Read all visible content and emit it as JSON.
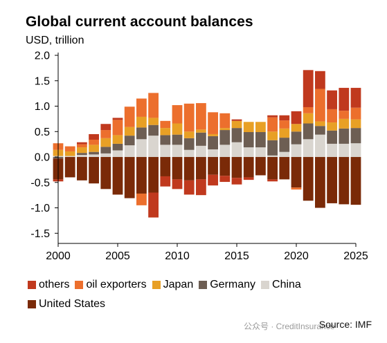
{
  "title": "Global current account balances",
  "subtitle": "USD, trillion",
  "source": "Source: IMF",
  "watermark": "公众号 · CreditInsurance",
  "chart_data": {
    "type": "bar",
    "stacked": true,
    "x": [
      2000,
      2001,
      2002,
      2003,
      2004,
      2005,
      2006,
      2007,
      2008,
      2009,
      2010,
      2011,
      2012,
      2013,
      2014,
      2015,
      2016,
      2017,
      2018,
      2019,
      2020,
      2021,
      2022,
      2023,
      2024,
      2025
    ],
    "xticks": [
      "2000",
      "2005",
      "2010",
      "2015",
      "2020",
      "2025"
    ],
    "yticks": [
      "2.0",
      "1.5",
      "1.0",
      "0.5",
      "0.0",
      "-0.5",
      "-1.0",
      "-1.5"
    ],
    "ylim": [
      -1.7,
      2.0
    ],
    "xlim": [
      2000,
      2025
    ],
    "grid": false,
    "legend_position": "bottom",
    "series": [
      {
        "name": "China",
        "color": "#d9d5cf",
        "values": [
          0.02,
          0.02,
          0.04,
          0.05,
          0.07,
          0.13,
          0.23,
          0.35,
          0.42,
          0.24,
          0.24,
          0.14,
          0.22,
          0.15,
          0.24,
          0.29,
          0.19,
          0.19,
          0.03,
          0.1,
          0.25,
          0.35,
          0.44,
          0.26,
          0.26,
          0.27
        ]
      },
      {
        "name": "Germany",
        "color": "#6d5e53",
        "values": [
          -0.03,
          0.0,
          0.04,
          0.05,
          0.13,
          0.13,
          0.19,
          0.23,
          0.21,
          0.19,
          0.2,
          0.23,
          0.26,
          0.26,
          0.29,
          0.28,
          0.3,
          0.3,
          0.3,
          0.28,
          0.25,
          0.31,
          0.17,
          0.26,
          0.3,
          0.3
        ]
      },
      {
        "name": "Japan",
        "color": "#e8a025",
        "values": [
          0.12,
          0.09,
          0.11,
          0.14,
          0.17,
          0.17,
          0.17,
          0.21,
          0.14,
          0.14,
          0.22,
          0.13,
          0.06,
          0.04,
          0.04,
          0.14,
          0.2,
          0.2,
          0.17,
          0.18,
          0.15,
          0.2,
          0.09,
          0.16,
          0.19,
          0.17
        ]
      },
      {
        "name": "oil exporters",
        "color": "#ec6f2d",
        "values": [
          0.13,
          0.1,
          0.06,
          0.1,
          0.16,
          0.3,
          0.4,
          0.36,
          0.49,
          0.14,
          0.36,
          0.55,
          0.52,
          0.43,
          0.29,
          0.0,
          0.0,
          0.0,
          0.28,
          0.16,
          0.0,
          0.12,
          0.64,
          0.26,
          0.16,
          0.23
        ]
      },
      {
        "name": "others",
        "color": "#c0391e",
        "values": [
          0.0,
          0.0,
          0.04,
          0.11,
          0.12,
          0.04,
          0.0,
          0.0,
          0.0,
          0.0,
          0.0,
          0.0,
          0.0,
          0.0,
          0.0,
          0.03,
          0.0,
          0.0,
          0.04,
          0.1,
          0.25,
          0.73,
          0.35,
          0.37,
          0.45,
          0.39
        ]
      },
      {
        "name": "United States",
        "color": "#7a2a08",
        "values": [
          -0.41,
          -0.4,
          -0.46,
          -0.52,
          -0.63,
          -0.74,
          -0.81,
          -0.72,
          -0.7,
          -0.38,
          -0.44,
          -0.46,
          -0.44,
          -0.35,
          -0.37,
          -0.41,
          -0.4,
          -0.36,
          -0.44,
          -0.44,
          -0.6,
          -0.86,
          -1.0,
          -0.91,
          -0.93,
          -0.94
        ]
      },
      {
        "name": "others_negative",
        "color": "#c0391e",
        "values": [
          -0.04,
          0.0,
          0.0,
          0.0,
          0.0,
          0.0,
          0.0,
          0.0,
          -0.49,
          -0.2,
          -0.19,
          -0.28,
          -0.31,
          -0.21,
          -0.12,
          -0.13,
          -0.05,
          0.0,
          -0.04,
          0.0,
          0.0,
          0.0,
          0.0,
          0.0,
          0.0,
          0.0
        ]
      },
      {
        "name": "oil_exporters_negative",
        "color": "#ec6f2d",
        "values": [
          0.0,
          0.0,
          0.0,
          0.0,
          0.0,
          0.0,
          0.0,
          -0.23,
          0.0,
          0.0,
          0.0,
          0.0,
          0.0,
          0.0,
          0.0,
          0.0,
          0.0,
          0.0,
          0.0,
          0.0,
          -0.04,
          0.0,
          0.0,
          0.0,
          0.0,
          0.0
        ]
      }
    ]
  },
  "legend": {
    "row1": [
      {
        "label": "others",
        "color": "#c0391e"
      },
      {
        "label": "oil exporters",
        "color": "#ec6f2d"
      },
      {
        "label": "Japan",
        "color": "#e8a025"
      },
      {
        "label": "Germany",
        "color": "#6d5e53"
      },
      {
        "label": "China",
        "color": "#d9d5cf"
      }
    ],
    "row2": [
      {
        "label": "United States",
        "color": "#7a2a08"
      }
    ]
  }
}
